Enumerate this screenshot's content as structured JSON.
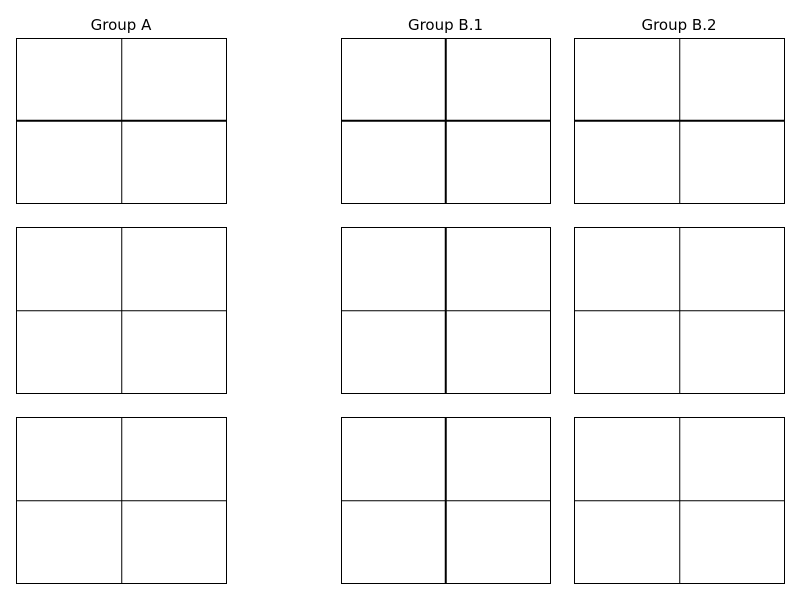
{
  "groups": [
    {
      "title": "Group A"
    },
    {
      "title": "Group B.1"
    },
    {
      "title": "Group B.2"
    }
  ],
  "line_color": "#000000",
  "background_color": "#ffffff"
}
